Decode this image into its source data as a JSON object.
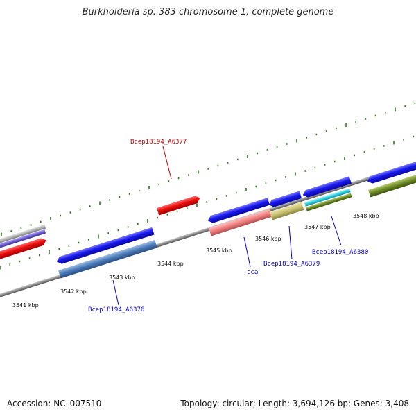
{
  "title": "Burkholderia sp. 383 chromosome 1, complete genome",
  "footer": {
    "accession": "Accession: NC_007510",
    "summary": "Topology: circular; Length: 3,694,126 bp; Genes: 3,408"
  },
  "ticks": [
    {
      "label": "3541 kbp"
    },
    {
      "label": "3542 kbp"
    },
    {
      "label": "3543 kbp"
    },
    {
      "label": "3544 kbp"
    },
    {
      "label": "3545 kbp"
    },
    {
      "label": "3546 kbp"
    },
    {
      "label": "3547 kbp"
    },
    {
      "label": "3548 kbp"
    }
  ],
  "gene_labels": [
    {
      "text": "Bcep18194_A6377",
      "color": "#cc0000"
    },
    {
      "text": "Bcep18194_A6376",
      "color": "#0000cc"
    },
    {
      "text": "cca",
      "color": "#0000cc"
    },
    {
      "text": "Bcep18194_A6379",
      "color": "#0000cc"
    },
    {
      "text": "Bcep18194_A6380",
      "color": "#0000cc"
    }
  ],
  "colors": {
    "backbone": "#8c8c8c",
    "tick": "#2e7d1e",
    "forward_gene": "#e00000",
    "reverse_gene": "#1a1aee",
    "cog_steelblue": "#4a7ab8",
    "cog_pink": "#f08080",
    "cog_khaki": "#c8c070",
    "cog_cyan": "#2ad4e4",
    "cog_olive": "#6e8a26",
    "cog_gray": "#b4b4b4",
    "cog_purple": "#7060d0"
  }
}
